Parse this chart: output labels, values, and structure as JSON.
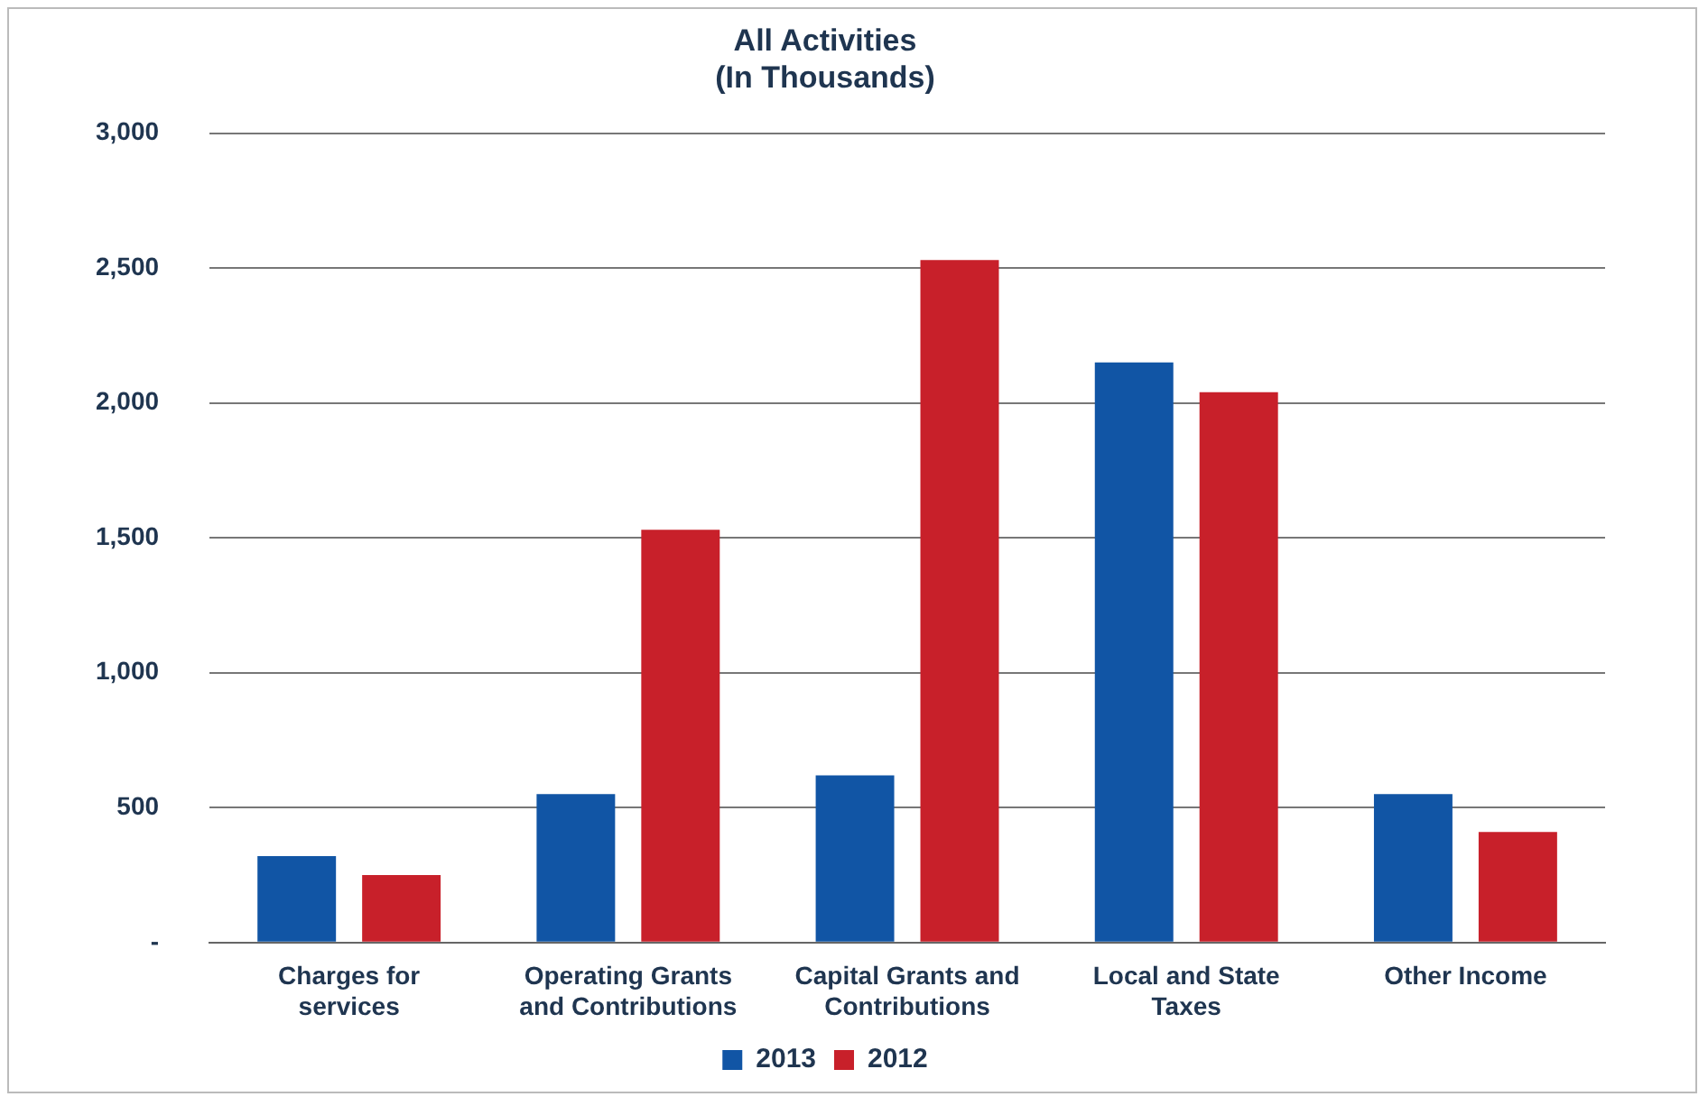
{
  "chart_data": {
    "type": "bar",
    "title": [
      "All Activities",
      "(In Thousands)"
    ],
    "categories": [
      [
        "Charges for",
        "services"
      ],
      [
        "Operating Grants",
        "and Contributions"
      ],
      [
        "Capital Grants and",
        "Contributions"
      ],
      [
        "Local and State",
        "Taxes"
      ],
      [
        "Other Income"
      ]
    ],
    "series": [
      {
        "name": "2013",
        "color": "#1155a5",
        "values": [
          320,
          550,
          620,
          2150,
          550
        ]
      },
      {
        "name": "2012",
        "color": "#c8202a",
        "values": [
          250,
          1530,
          2530,
          2040,
          410
        ]
      }
    ],
    "ylim": [
      0,
      3000
    ],
    "yticks": [
      {
        "value": 0,
        "label": "-"
      },
      {
        "value": 500,
        "label": "500"
      },
      {
        "value": 1000,
        "label": "1,000"
      },
      {
        "value": 1500,
        "label": "1,500"
      },
      {
        "value": 2000,
        "label": "2,000"
      },
      {
        "value": 2500,
        "label": "2,500"
      },
      {
        "value": 3000,
        "label": "3,000"
      }
    ],
    "grid": "y",
    "legend": "bottom"
  }
}
